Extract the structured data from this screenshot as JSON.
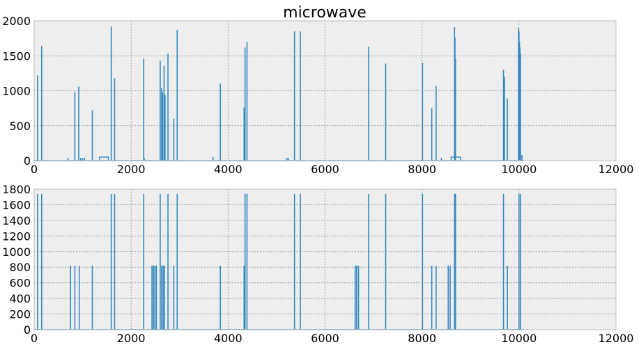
{
  "figure": {
    "title": "microwave"
  },
  "colors": {
    "series": "#348abd",
    "panel_bg": "#eeeeee",
    "grid": "#8c8c8c",
    "border": "#bcbcbc"
  },
  "chart_data": [
    {
      "type": "line",
      "title": "microwave",
      "xlabel": "",
      "ylabel": "",
      "xlim": [
        0,
        12000
      ],
      "ylim": [
        0,
        2000
      ],
      "xticks": [
        0,
        2000,
        4000,
        6000,
        8000,
        10000,
        12000
      ],
      "yticks": [
        0,
        500,
        1000,
        1500,
        2000
      ],
      "xtick_labels": [
        "0",
        "2000",
        "4000",
        "6000",
        "8000",
        "10000",
        "12000"
      ],
      "ytick_labels": [
        "0",
        "500",
        "1000",
        "1500",
        "2000"
      ],
      "grid": true,
      "series": [
        {
          "baseline": 0,
          "spikes": [
            [
              70,
              1220
            ],
            [
              155,
              1640
            ],
            [
              700,
              40
            ],
            [
              840,
              980
            ],
            [
              920,
              1060
            ],
            [
              960,
              40
            ],
            [
              1000,
              40
            ],
            [
              1040,
              40
            ],
            [
              1200,
              720
            ],
            [
              1590,
              1920
            ],
            [
              1660,
              1180
            ],
            [
              2260,
              1460
            ],
            [
              2270,
              40
            ],
            [
              2600,
              1430
            ],
            [
              2630,
              1040
            ],
            [
              2650,
              980
            ],
            [
              2680,
              1360
            ],
            [
              2700,
              940
            ],
            [
              2760,
              1530
            ],
            [
              2880,
              600
            ],
            [
              2950,
              1870
            ],
            [
              3690,
              50
            ],
            [
              3840,
              1100
            ],
            [
              4330,
              760
            ],
            [
              4350,
              1620
            ],
            [
              4390,
              1700
            ],
            [
              5210,
              40
            ],
            [
              5240,
              40
            ],
            [
              5370,
              1850
            ],
            [
              5490,
              1850
            ],
            [
              6900,
              1630
            ],
            [
              7250,
              1390
            ],
            [
              8010,
              1400
            ],
            [
              8200,
              750
            ],
            [
              8290,
              1070
            ],
            [
              8400,
              40
            ],
            [
              8670,
              1910
            ],
            [
              8680,
              1760
            ],
            [
              8690,
              1460
            ],
            [
              9680,
              1300
            ],
            [
              9700,
              1200
            ],
            [
              9760,
              890
            ],
            [
              9990,
              1900
            ],
            [
              10000,
              1850
            ],
            [
              10010,
              1700
            ],
            [
              10020,
              1620
            ],
            [
              10030,
              1540
            ],
            [
              10060,
              80
            ]
          ],
          "plateaus": [
            [
              1350,
              1530,
              50
            ],
            [
              8600,
              8790,
              50
            ]
          ]
        }
      ]
    },
    {
      "type": "line",
      "title": "",
      "xlabel": "",
      "ylabel": "",
      "xlim": [
        0,
        12000
      ],
      "ylim": [
        0,
        1800
      ],
      "xticks": [
        0,
        2000,
        4000,
        6000,
        8000,
        10000,
        12000
      ],
      "yticks": [
        0,
        200,
        400,
        600,
        800,
        1000,
        1200,
        1400,
        1600,
        1800
      ],
      "xtick_labels": [
        "0",
        "2000",
        "4000",
        "6000",
        "8000",
        "10000",
        "12000"
      ],
      "ytick_labels": [
        "0",
        "200",
        "400",
        "600",
        "800",
        "1000",
        "1200",
        "1400",
        "1600",
        "1800"
      ],
      "grid": true,
      "series": [
        {
          "baseline": 0,
          "spikes": [
            [
              70,
              1740
            ],
            [
              155,
              1740
            ],
            [
              750,
              820
            ],
            [
              840,
              820
            ],
            [
              930,
              820
            ],
            [
              1200,
              820
            ],
            [
              1590,
              1740
            ],
            [
              1660,
              1740
            ],
            [
              2260,
              1740
            ],
            [
              2430,
              820
            ],
            [
              2460,
              820
            ],
            [
              2490,
              820
            ],
            [
              2520,
              820
            ],
            [
              2600,
              1740
            ],
            [
              2630,
              820
            ],
            [
              2660,
              820
            ],
            [
              2690,
              820
            ],
            [
              2760,
              1740
            ],
            [
              2880,
              820
            ],
            [
              2950,
              1740
            ],
            [
              3840,
              820
            ],
            [
              4330,
              820
            ],
            [
              4350,
              1740
            ],
            [
              4390,
              1740
            ],
            [
              5370,
              1740
            ],
            [
              5490,
              1740
            ],
            [
              6620,
              820
            ],
            [
              6650,
              820
            ],
            [
              6690,
              820
            ],
            [
              6900,
              1740
            ],
            [
              7250,
              1740
            ],
            [
              8010,
              1740
            ],
            [
              8200,
              820
            ],
            [
              8290,
              820
            ],
            [
              8540,
              820
            ],
            [
              8580,
              820
            ],
            [
              8670,
              1740
            ],
            [
              8690,
              1740
            ],
            [
              9680,
              1740
            ],
            [
              9760,
              820
            ],
            [
              10000,
              1740
            ],
            [
              10030,
              1740
            ]
          ],
          "plateaus": []
        }
      ]
    }
  ]
}
